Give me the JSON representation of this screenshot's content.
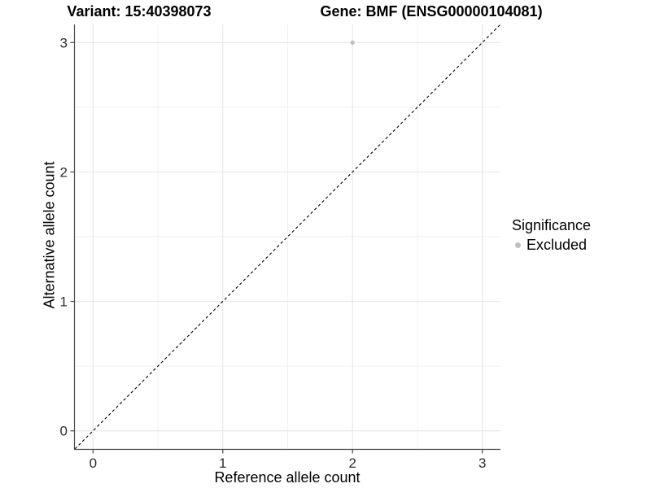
{
  "titles": {
    "variant": "Variant: 15:40398073",
    "gene": "Gene: BMF (ENSG00000104081)"
  },
  "chart_data": {
    "type": "scatter",
    "xlabel": "Reference allele count",
    "ylabel": "Alternative allele count",
    "xlim": [
      0,
      3
    ],
    "ylim": [
      0,
      3
    ],
    "expansion": 0.14,
    "x_ticks": [
      0,
      1,
      2,
      3
    ],
    "y_ticks": [
      0,
      1,
      2,
      3
    ],
    "x_minor": [
      0.5,
      1.5,
      2.5
    ],
    "y_minor": [
      0.5,
      1.5,
      2.5
    ],
    "grid": true,
    "legend_position": "right",
    "series": [
      {
        "name": "Excluded",
        "color": "#bfbfbf",
        "point_radius": 2.6,
        "points": [
          {
            "x": 2,
            "y": 3
          }
        ]
      }
    ],
    "reference_line": {
      "slope": 1,
      "intercept": 0,
      "style": "dashed",
      "color": "#000000"
    },
    "colors": {
      "background": "#ffffff",
      "grid_major": "#e4e4e4",
      "grid_minor": "#f1f1f1",
      "axis": "#474747",
      "tick_text": "#2e2e2e"
    }
  },
  "legend": {
    "title": "Significance",
    "items": [
      {
        "label": "Excluded",
        "color": "#bfbfbf",
        "icon": "circle-icon"
      }
    ]
  }
}
